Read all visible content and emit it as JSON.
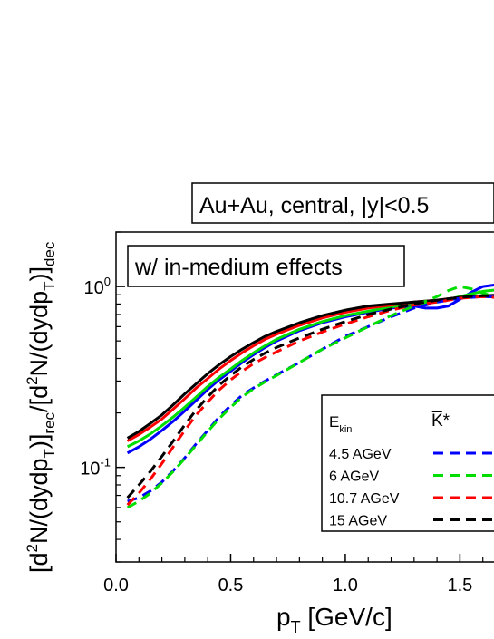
{
  "chart_data": {
    "type": "line",
    "title": "Au+Au, central, |y|<0.5",
    "annotation": "w/ in-medium effects",
    "xlabel": {
      "base": "p",
      "sub": "T",
      "unit": " [GeV/c]"
    },
    "ylabel": "[d²N/(dydp_T)]_rec/[d²N/(dydp_T)]_dec",
    "x_range": [
      0.0,
      1.7
    ],
    "y_range": [
      0.03,
      2.0
    ],
    "y_scale": "log",
    "x_ticks": [
      "0.0",
      "0.5",
      "1.0",
      "1.5"
    ],
    "y_ticks": [
      {
        "value": 1.0,
        "label": "10",
        "exp": "0"
      },
      {
        "value": 0.1,
        "label": "10",
        "exp": "-1"
      }
    ],
    "legend": {
      "placement": "bottom-right",
      "header_left": "E",
      "header_left_sub": "kin",
      "header_right": "K̅*"
    },
    "series": [
      {
        "name": "4.5 AGeV",
        "color": "#0000ff",
        "style": "solid",
        "x": [
          0.05,
          0.1,
          0.15,
          0.2,
          0.25,
          0.3,
          0.35,
          0.4,
          0.45,
          0.5,
          0.55,
          0.6,
          0.65,
          0.7,
          0.8,
          0.9,
          1.0,
          1.1,
          1.2,
          1.3,
          1.35,
          1.4,
          1.45,
          1.5,
          1.55,
          1.6,
          1.65,
          1.7
        ],
        "y": [
          0.12,
          0.13,
          0.143,
          0.16,
          0.18,
          0.205,
          0.235,
          0.27,
          0.305,
          0.34,
          0.38,
          0.42,
          0.46,
          0.5,
          0.57,
          0.63,
          0.68,
          0.72,
          0.76,
          0.78,
          0.76,
          0.76,
          0.78,
          0.85,
          0.93,
          1.0,
          1.02,
          1.0
        ]
      },
      {
        "name": "6 AGeV",
        "color": "#00dd00",
        "style": "solid",
        "x": [
          0.05,
          0.1,
          0.15,
          0.2,
          0.25,
          0.3,
          0.35,
          0.4,
          0.45,
          0.5,
          0.55,
          0.6,
          0.65,
          0.7,
          0.8,
          0.9,
          1.0,
          1.1,
          1.2,
          1.3,
          1.4,
          1.5,
          1.6,
          1.7
        ],
        "y": [
          0.13,
          0.14,
          0.153,
          0.17,
          0.19,
          0.215,
          0.245,
          0.28,
          0.315,
          0.35,
          0.39,
          0.43,
          0.47,
          0.51,
          0.58,
          0.64,
          0.69,
          0.73,
          0.77,
          0.8,
          0.82,
          0.88,
          0.94,
          0.97
        ]
      },
      {
        "name": "10.7 AGeV",
        "color": "#ff0000",
        "style": "solid",
        "x": [
          0.05,
          0.1,
          0.15,
          0.2,
          0.25,
          0.3,
          0.35,
          0.4,
          0.45,
          0.5,
          0.55,
          0.6,
          0.65,
          0.7,
          0.8,
          0.9,
          1.0,
          1.1,
          1.2,
          1.3,
          1.4,
          1.5,
          1.6,
          1.7
        ],
        "y": [
          0.14,
          0.152,
          0.167,
          0.185,
          0.21,
          0.24,
          0.275,
          0.31,
          0.35,
          0.39,
          0.43,
          0.47,
          0.51,
          0.545,
          0.61,
          0.67,
          0.72,
          0.76,
          0.79,
          0.82,
          0.84,
          0.87,
          0.88,
          0.88
        ]
      },
      {
        "name": "15 AGeV",
        "color": "#000000",
        "style": "solid",
        "x": [
          0.05,
          0.1,
          0.15,
          0.2,
          0.25,
          0.3,
          0.35,
          0.4,
          0.45,
          0.5,
          0.55,
          0.6,
          0.65,
          0.7,
          0.8,
          0.9,
          1.0,
          1.1,
          1.2,
          1.3,
          1.4,
          1.5,
          1.6,
          1.7
        ],
        "y": [
          0.145,
          0.158,
          0.175,
          0.195,
          0.222,
          0.255,
          0.29,
          0.33,
          0.37,
          0.41,
          0.45,
          0.49,
          0.53,
          0.565,
          0.63,
          0.69,
          0.74,
          0.78,
          0.8,
          0.82,
          0.84,
          0.87,
          0.89,
          0.9
        ]
      },
      {
        "name": "4.5 AGeV",
        "color": "#0000ff",
        "style": "dashed",
        "x": [
          0.05,
          0.1,
          0.15,
          0.2,
          0.25,
          0.3,
          0.35,
          0.4,
          0.45,
          0.5,
          0.55,
          0.6,
          0.65,
          0.7,
          0.8,
          0.9,
          1.0,
          1.1,
          1.2,
          1.3,
          1.4,
          1.5,
          1.6,
          1.7
        ],
        "y": [
          0.065,
          0.068,
          0.074,
          0.083,
          0.096,
          0.113,
          0.135,
          0.16,
          0.19,
          0.22,
          0.25,
          0.275,
          0.3,
          0.325,
          0.38,
          0.45,
          0.53,
          0.6,
          0.68,
          0.76,
          0.82,
          0.86,
          0.88,
          0.87
        ]
      },
      {
        "name": "6 AGeV",
        "color": "#00dd00",
        "style": "dashed",
        "x": [
          0.05,
          0.1,
          0.15,
          0.2,
          0.25,
          0.3,
          0.35,
          0.4,
          0.45,
          0.5,
          0.55,
          0.6,
          0.65,
          0.7,
          0.8,
          0.9,
          1.0,
          1.1,
          1.2,
          1.3,
          1.4,
          1.45,
          1.5,
          1.55,
          1.6,
          1.65,
          1.7
        ],
        "y": [
          0.06,
          0.065,
          0.072,
          0.082,
          0.095,
          0.112,
          0.133,
          0.158,
          0.186,
          0.215,
          0.245,
          0.272,
          0.297,
          0.322,
          0.38,
          0.45,
          0.52,
          0.6,
          0.69,
          0.78,
          0.88,
          0.95,
          1.0,
          0.97,
          0.92,
          0.88,
          0.86
        ]
      },
      {
        "name": "10.7 AGeV",
        "color": "#ff0000",
        "style": "dashed",
        "x": [
          0.05,
          0.1,
          0.15,
          0.2,
          0.25,
          0.3,
          0.35,
          0.4,
          0.45,
          0.5,
          0.55,
          0.6,
          0.65,
          0.7,
          0.8,
          0.9,
          1.0,
          1.1,
          1.2,
          1.3,
          1.4,
          1.5,
          1.6,
          1.7
        ],
        "y": [
          0.062,
          0.072,
          0.086,
          0.105,
          0.13,
          0.16,
          0.195,
          0.23,
          0.268,
          0.305,
          0.34,
          0.375,
          0.405,
          0.435,
          0.5,
          0.56,
          0.62,
          0.68,
          0.74,
          0.79,
          0.82,
          0.86,
          0.88,
          0.86
        ]
      },
      {
        "name": "15 AGeV",
        "color": "#000000",
        "style": "dashed",
        "x": [
          0.05,
          0.1,
          0.15,
          0.2,
          0.25,
          0.3,
          0.35,
          0.4,
          0.45,
          0.5,
          0.55,
          0.6,
          0.65,
          0.7,
          0.8,
          0.9,
          1.0,
          1.1,
          1.2,
          1.3,
          1.4,
          1.5,
          1.6,
          1.7
        ],
        "y": [
          0.068,
          0.08,
          0.095,
          0.115,
          0.14,
          0.172,
          0.208,
          0.245,
          0.285,
          0.322,
          0.36,
          0.395,
          0.428,
          0.46,
          0.52,
          0.58,
          0.64,
          0.7,
          0.75,
          0.8,
          0.84,
          0.87,
          0.89,
          0.89
        ]
      }
    ]
  }
}
